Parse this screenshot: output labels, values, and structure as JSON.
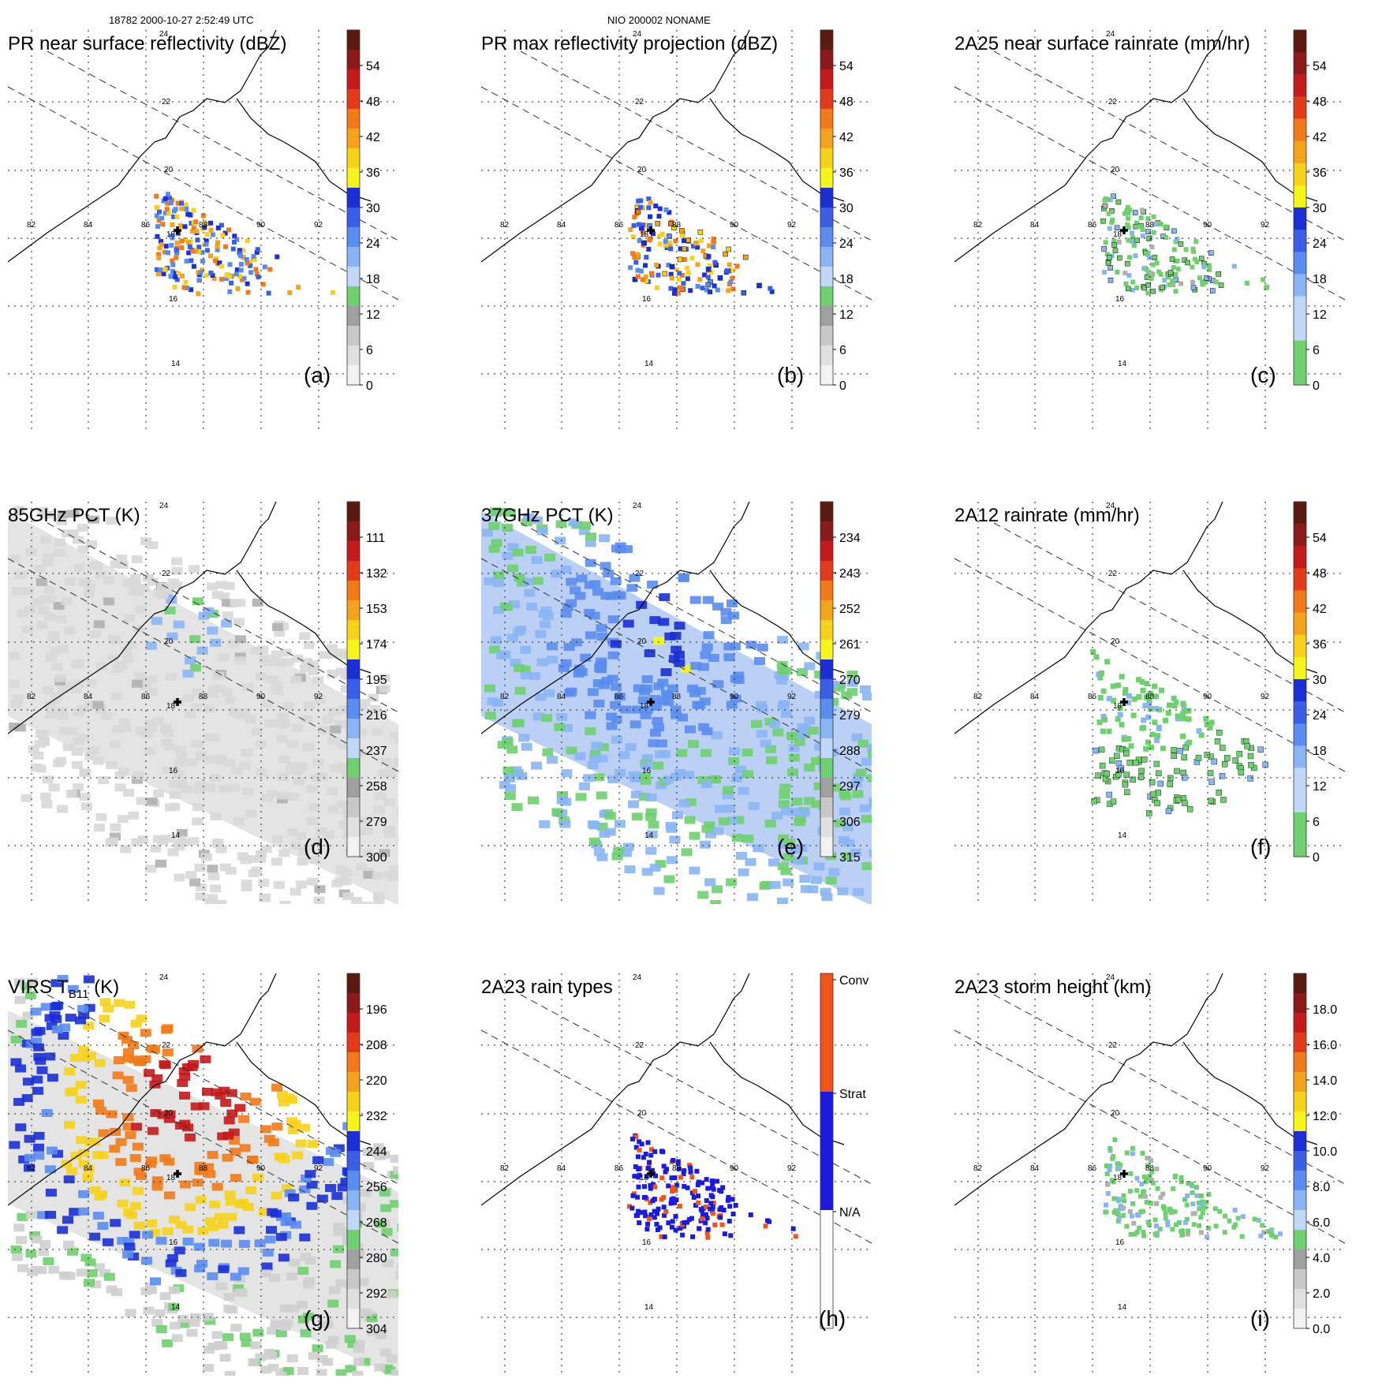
{
  "header": {
    "orbit_time": "18782 2000-10-27 2:52:49 UTC",
    "storm_id": "NIO 200002 NONAME"
  },
  "map": {
    "lon_labels": [
      "82",
      "84",
      "86",
      "88",
      "90",
      "92"
    ],
    "lat_labels": [
      "24",
      "22",
      "20",
      "18",
      "16",
      "14"
    ]
  },
  "panels": [
    {
      "id": "a",
      "letter": "(a)",
      "title": "PR near surface reflectivity (dBZ)",
      "ticks": [
        "54",
        "48",
        "42",
        "36",
        "30",
        "24",
        "18",
        "12",
        "6",
        "0"
      ],
      "colorbar": [
        "#5a1a10",
        "#8b1a1a",
        "#c41a1a",
        "#e53a1a",
        "#f27a1a",
        "#f5a31a",
        "#f7d21a",
        "#f5f51a",
        "#1a2fd6",
        "#3a5ee6",
        "#5a8cf0",
        "#8ab5f5",
        "#c2d8f8",
        "#6ed06e",
        "#a0a0a0",
        "#c8c8c8",
        "#e0e0e0",
        "#f2f2f2"
      ],
      "field": "swath",
      "contour": false
    },
    {
      "id": "b",
      "letter": "(b)",
      "title": "PR max reflectivity projection (dBZ)",
      "ticks": [
        "54",
        "48",
        "42",
        "36",
        "30",
        "24",
        "18",
        "12",
        "6",
        "0"
      ],
      "colorbar": [
        "#5a1a10",
        "#8b1a1a",
        "#c41a1a",
        "#e53a1a",
        "#f27a1a",
        "#f5a31a",
        "#f7d21a",
        "#f5f51a",
        "#1a2fd6",
        "#3a5ee6",
        "#5a8cf0",
        "#8ab5f5",
        "#c2d8f8",
        "#6ed06e",
        "#a0a0a0",
        "#c8c8c8",
        "#e0e0e0",
        "#f2f2f2"
      ],
      "field": "swath",
      "contour": true
    },
    {
      "id": "c",
      "letter": "(c)",
      "title": "2A25 near surface rainrate (mm/hr)",
      "ticks": [
        "54",
        "48",
        "42",
        "36",
        "30",
        "24",
        "18",
        "12",
        "6",
        "0"
      ],
      "colorbar": [
        "#5a1a10",
        "#8b1a1a",
        "#c41a1a",
        "#e53a1a",
        "#f27a1a",
        "#f5a31a",
        "#f7d21a",
        "#f5f51a",
        "#1a2fd6",
        "#3a5ee6",
        "#5a8cf0",
        "#8ab5f5",
        "#c2d8f8",
        "#c2d8f8",
        "#6ed06e",
        "#6ed06e"
      ],
      "field": "swath-green",
      "contour": true
    },
    {
      "id": "d",
      "letter": "(d)",
      "title": "85GHz PCT (K)",
      "ticks": [
        "111",
        "132",
        "153",
        "174",
        "195",
        "216",
        "237",
        "258",
        "279",
        "300"
      ],
      "colorbar": [
        "#5a1a10",
        "#8b1a1a",
        "#c41a1a",
        "#e53a1a",
        "#f27a1a",
        "#f5a31a",
        "#f7d21a",
        "#f5f51a",
        "#1a2fd6",
        "#3a5ee6",
        "#5a8cf0",
        "#8ab5f5",
        "#c2d8f8",
        "#6ed06e",
        "#a0a0a0",
        "#c8c8c8",
        "#e0e0e0",
        "#f2f2f2"
      ],
      "field": "wide-gray",
      "contour": true
    },
    {
      "id": "e",
      "letter": "(e)",
      "title": "37GHz PCT (K)",
      "ticks": [
        "234",
        "243",
        "252",
        "261",
        "270",
        "279",
        "288",
        "297",
        "306",
        "315"
      ],
      "colorbar": [
        "#5a1a10",
        "#8b1a1a",
        "#c41a1a",
        "#e53a1a",
        "#f27a1a",
        "#f5a31a",
        "#f7d21a",
        "#f5f51a",
        "#1a2fd6",
        "#3a5ee6",
        "#5a8cf0",
        "#8ab5f5",
        "#c2d8f8",
        "#6ed06e",
        "#a0a0a0",
        "#c8c8c8",
        "#e0e0e0",
        "#f2f2f2"
      ],
      "field": "wide-blue",
      "contour": false
    },
    {
      "id": "f",
      "letter": "(f)",
      "title": "2A12 rainrate (mm/hr)",
      "ticks": [
        "54",
        "48",
        "42",
        "36",
        "30",
        "24",
        "18",
        "12",
        "6",
        "0"
      ],
      "colorbar": [
        "#5a1a10",
        "#8b1a1a",
        "#c41a1a",
        "#e53a1a",
        "#f27a1a",
        "#f5a31a",
        "#f7d21a",
        "#f5f51a",
        "#1a2fd6",
        "#3a5ee6",
        "#5a8cf0",
        "#8ab5f5",
        "#c2d8f8",
        "#c2d8f8",
        "#6ed06e",
        "#6ed06e"
      ],
      "field": "spiral-green",
      "contour": true
    },
    {
      "id": "g",
      "letter": "(g)",
      "title": "VIRS T",
      "title_sub": "B11",
      "title_end": " (K)",
      "ticks": [
        "196",
        "208",
        "220",
        "232",
        "244",
        "256",
        "268",
        "280",
        "292",
        "304"
      ],
      "colorbar": [
        "#5a1a10",
        "#8b1a1a",
        "#c41a1a",
        "#e53a1a",
        "#f27a1a",
        "#f5a31a",
        "#f7d21a",
        "#f5f51a",
        "#1a2fd6",
        "#3a5ee6",
        "#5a8cf0",
        "#8ab5f5",
        "#c2d8f8",
        "#6ed06e",
        "#a0a0a0",
        "#c8c8c8",
        "#e0e0e0",
        "#f2f2f2"
      ],
      "field": "wide-ir",
      "contour": true
    },
    {
      "id": "h",
      "letter": "(h)",
      "title": "2A23 rain types",
      "ticks": [
        "Conv",
        "Strat",
        "N/A"
      ],
      "colorbar": [
        "#f0541a",
        "#f0541a",
        "#1a1ae0",
        "#1a1ae0",
        "#ffffff",
        "#ffffff"
      ],
      "field": "swath-type",
      "contour": false
    },
    {
      "id": "i",
      "letter": "(i)",
      "title": "2A23 storm height (km)",
      "ticks": [
        "18.0",
        "16.0",
        "14.0",
        "12.0",
        "10.0",
        "8.0",
        "6.0",
        "4.0",
        "2.0",
        "0.0"
      ],
      "colorbar": [
        "#5a1a10",
        "#8b1a1a",
        "#c41a1a",
        "#e53a1a",
        "#f27a1a",
        "#f5a31a",
        "#f7d21a",
        "#f5f51a",
        "#1a2fd6",
        "#3a5ee6",
        "#5a8cf0",
        "#8ab5f5",
        "#c2d8f8",
        "#6ed06e",
        "#a0a0a0",
        "#c8c8c8",
        "#e0e0e0",
        "#f2f2f2"
      ],
      "field": "swath-green",
      "contour": false
    }
  ]
}
